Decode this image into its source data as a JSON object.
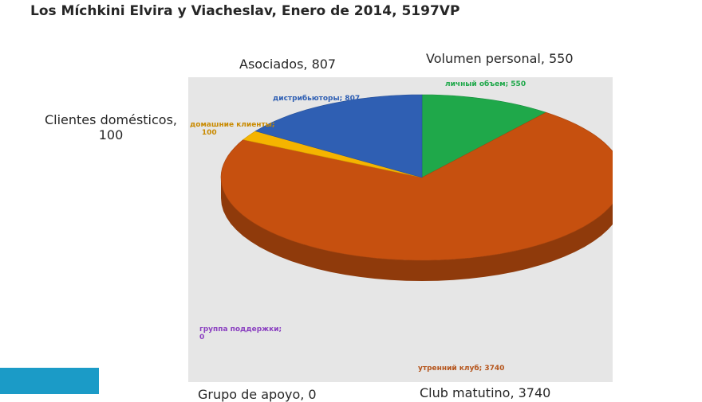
{
  "title": "Los Míchkini Elvira y Viacheslav, Enero de 2014, 5197VP",
  "external_labels": {
    "asociados": "Asociados, 807",
    "volumen": "Volumen personal, 550",
    "clientes_line1": "Clientes domésticos,",
    "clientes_line2": "100",
    "grupo": "Grupo de apoyo, 0",
    "club": "Club matutino, 3740"
  },
  "chart_data": {
    "type": "pie",
    "title": "",
    "slices": [
      {
        "label": "личный объем",
        "value": 550,
        "color": "#1fa84a"
      },
      {
        "label": "утренний клуб",
        "value": 3740,
        "color": "#c6500f"
      },
      {
        "label": "группа поддержки",
        "value": 0,
        "color": "#7a3fb0"
      },
      {
        "label": "домашние клиенты",
        "value": 100,
        "color": "#f5b400"
      },
      {
        "label": "дистрибьюторы",
        "value": 807,
        "color": "#2f5fb3"
      }
    ],
    "data_labels": {
      "lichny": "личный объем; 550",
      "distrib": "дистрибьюторы; 807",
      "domash_line1": "домашние клиенты;",
      "domash_line2": "100",
      "gruppa_line1": "группа поддержки;",
      "gruppa_line2": "0",
      "utrenny": "утренний клуб; 3740"
    },
    "colors": {
      "lichny": "#1fa84a",
      "distrib": "#2f5fb3",
      "domash": "#c98a00",
      "gruppa": "#8a3fc0",
      "utrenny": "#b5541b"
    }
  }
}
